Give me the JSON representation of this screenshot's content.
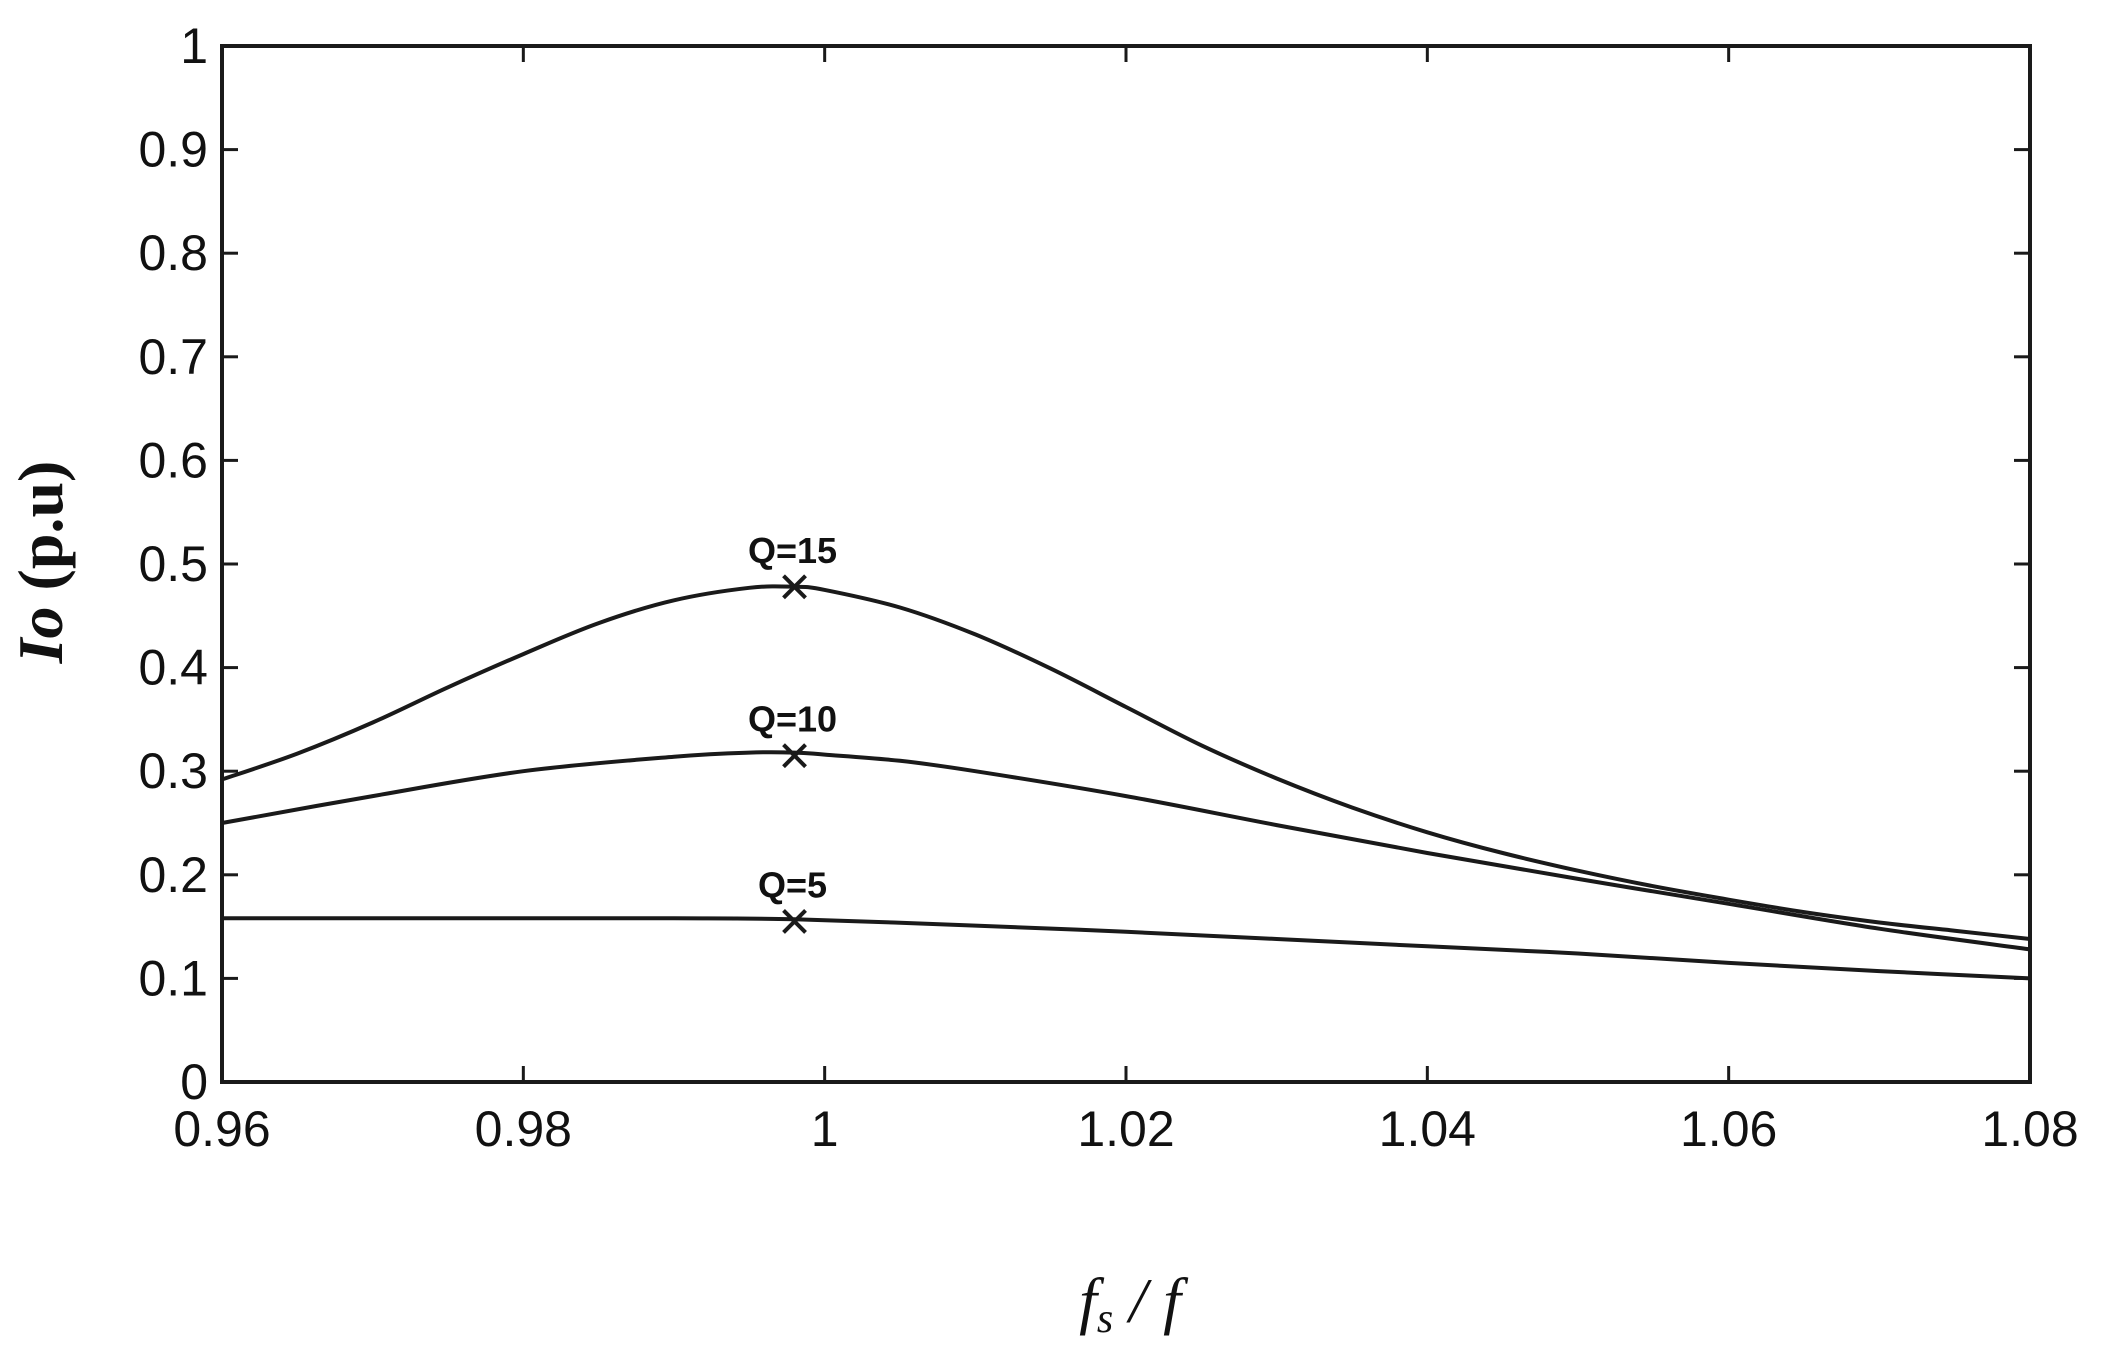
{
  "chart_data": {
    "type": "line",
    "title": "",
    "xlabel_main": "f",
    "xlabel_sub": "s",
    "xlabel_rest": " / f",
    "ylabel_italic": "Io",
    "ylabel_rest": " (p.u)",
    "xlim": [
      0.96,
      1.08
    ],
    "ylim": [
      0,
      1
    ],
    "x_ticks": [
      0.96,
      0.98,
      1.0,
      1.02,
      1.04,
      1.06,
      1.08
    ],
    "x_tick_labels": [
      "0.96",
      "0.98",
      "1",
      "1.02",
      "1.04",
      "1.06",
      "1.08"
    ],
    "y_ticks": [
      0,
      0.1,
      0.2,
      0.3,
      0.4,
      0.5,
      0.6,
      0.7,
      0.8,
      0.9,
      1
    ],
    "y_tick_labels": [
      "0",
      "0.1",
      "0.2",
      "0.3",
      "0.4",
      "0.5",
      "0.6",
      "0.7",
      "0.8",
      "0.9",
      "1"
    ],
    "grid": false,
    "series": [
      {
        "name": "Q=15",
        "x": [
          0.96,
          0.965,
          0.97,
          0.975,
          0.98,
          0.985,
          0.99,
          0.995,
          0.998,
          1.0,
          1.005,
          1.01,
          1.015,
          1.02,
          1.025,
          1.03,
          1.035,
          1.04,
          1.045,
          1.05,
          1.055,
          1.06,
          1.065,
          1.07,
          1.075,
          1.08
        ],
        "y": [
          0.292,
          0.317,
          0.347,
          0.381,
          0.413,
          0.443,
          0.465,
          0.477,
          0.478,
          0.475,
          0.458,
          0.432,
          0.399,
          0.362,
          0.325,
          0.293,
          0.265,
          0.241,
          0.221,
          0.204,
          0.189,
          0.176,
          0.164,
          0.154,
          0.146,
          0.138
        ],
        "marker": {
          "x": 0.998,
          "y": 0.478
        }
      },
      {
        "name": "Q=10",
        "x": [
          0.96,
          0.97,
          0.98,
          0.99,
          0.995,
          0.998,
          1.0,
          1.005,
          1.01,
          1.02,
          1.03,
          1.04,
          1.05,
          1.06,
          1.07,
          1.08
        ],
        "y": [
          0.25,
          0.276,
          0.3,
          0.314,
          0.318,
          0.318,
          0.316,
          0.31,
          0.3,
          0.276,
          0.248,
          0.221,
          0.196,
          0.172,
          0.148,
          0.128
        ],
        "marker": {
          "x": 0.998,
          "y": 0.315
        }
      },
      {
        "name": "Q=5",
        "x": [
          0.96,
          0.97,
          0.98,
          0.99,
          0.998,
          1.01,
          1.02,
          1.03,
          1.04,
          1.05,
          1.06,
          1.07,
          1.08
        ],
        "y": [
          0.158,
          0.158,
          0.158,
          0.158,
          0.157,
          0.151,
          0.145,
          0.138,
          0.131,
          0.124,
          0.115,
          0.107,
          0.1
        ],
        "marker": {
          "x": 0.998,
          "y": 0.155
        }
      }
    ]
  }
}
